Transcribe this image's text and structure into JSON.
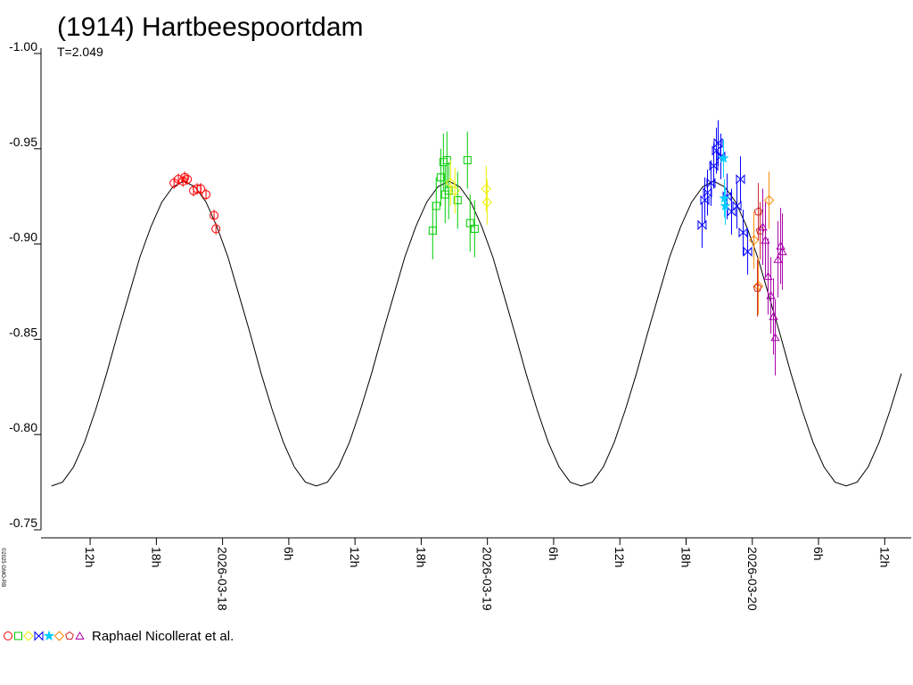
{
  "chart_data": {
    "type": "scatter",
    "title": "(1914) Hartbeespoortdam",
    "subtitle": "T=2.049",
    "copyright": "©2025 GMO-RB",
    "legend_label": "Raphael Nicollerat et al.",
    "xlim": [
      7.55,
      86.4
    ],
    "xticks": [
      {
        "value": 12,
        "label": "12h"
      },
      {
        "value": 18,
        "label": "18h"
      },
      {
        "value": 24,
        "label": "2026-03-18"
      },
      {
        "value": 30,
        "label": "6h"
      },
      {
        "value": 36,
        "label": "12h"
      },
      {
        "value": 42,
        "label": "18h"
      },
      {
        "value": 48,
        "label": "2026-03-19"
      },
      {
        "value": 54,
        "label": "6h"
      },
      {
        "value": 60,
        "label": "12h"
      },
      {
        "value": 66,
        "label": "18h"
      },
      {
        "value": 72,
        "label": "2026-03-20"
      },
      {
        "value": 78,
        "label": "6h"
      },
      {
        "value": 84,
        "label": "12h"
      }
    ],
    "ylim": [
      -1.0,
      -0.75
    ],
    "yreversed": true,
    "yticks": [
      {
        "value": -1.0,
        "label": "-1.00"
      },
      -0.95,
      {
        "value": -0.9,
        "label": "-0.90"
      },
      -0.85,
      {
        "value": -0.8,
        "label": "-0.80"
      },
      -0.75
    ],
    "curve": {
      "color": "#000000",
      "x": [
        8.5,
        9.5,
        10.5,
        11.5,
        12.5,
        13.5,
        14.5,
        15.5,
        16.5,
        17.5,
        18.5,
        19.5,
        20.5,
        21.5,
        22.5,
        23.5,
        24.5,
        25.5,
        26.5,
        27.5,
        28.5,
        29.5,
        30.5,
        31.5,
        32.5,
        33.5,
        34.5,
        35.5,
        36.5,
        37.5,
        38.5,
        39.5,
        40.5,
        41.5,
        42.5,
        43.5,
        44.5,
        45.5,
        46.5,
        47.5,
        48.5,
        49.5,
        50.5,
        51.5,
        52.5,
        53.5,
        54.5,
        55.5,
        56.5,
        57.5,
        58.5,
        59.5,
        60.5,
        61.5,
        62.5,
        63.5,
        64.5,
        65.5,
        66.5,
        67.5,
        68.5,
        69.5,
        70.5,
        71.5,
        72.5,
        73.5,
        74.5,
        75.5,
        76.5,
        77.5,
        78.5,
        79.5,
        80.5,
        81.5,
        82.5,
        83.5,
        84.5,
        85.5
      ],
      "values": [
        -0.773,
        -0.775,
        -0.783,
        -0.796,
        -0.813,
        -0.832,
        -0.853,
        -0.873,
        -0.893,
        -0.909,
        -0.922,
        -0.93,
        -0.933,
        -0.93,
        -0.922,
        -0.909,
        -0.893,
        -0.873,
        -0.853,
        -0.832,
        -0.813,
        -0.796,
        -0.783,
        -0.775,
        -0.773,
        -0.775,
        -0.783,
        -0.796,
        -0.813,
        -0.832,
        -0.853,
        -0.873,
        -0.893,
        -0.909,
        -0.922,
        -0.93,
        -0.933,
        -0.93,
        -0.922,
        -0.909,
        -0.893,
        -0.873,
        -0.853,
        -0.832,
        -0.813,
        -0.796,
        -0.783,
        -0.775,
        -0.773,
        -0.775,
        -0.783,
        -0.796,
        -0.813,
        -0.832,
        -0.853,
        -0.873,
        -0.893,
        -0.909,
        -0.922,
        -0.93,
        -0.933,
        -0.93,
        -0.922,
        -0.909,
        -0.893,
        -0.873,
        -0.853,
        -0.832,
        -0.813,
        -0.796,
        -0.783,
        -0.775,
        -0.773,
        -0.775,
        -0.783,
        -0.796,
        -0.813,
        -0.832
      ]
    },
    "series": [
      {
        "color": "#ff0000",
        "marker": "circle",
        "x": [
          19.6,
          20.0,
          20.41,
          20.57,
          20.81,
          21.37,
          21.7,
          22.02,
          22.5,
          23.23,
          23.4
        ],
        "values": [
          -0.932,
          -0.934,
          -0.933,
          -0.935,
          -0.934,
          -0.928,
          -0.929,
          -0.929,
          -0.926,
          -0.915,
          -0.908
        ],
        "errors": [
          0.003,
          0.003,
          0.003,
          0.003,
          0.003,
          0.003,
          0.003,
          0.003,
          0.003,
          0.003,
          0.003
        ]
      },
      {
        "color": "#00cc00",
        "marker": "square",
        "x": [
          43.04,
          43.36,
          43.77,
          44.01,
          44.17,
          44.33,
          44.49,
          45.3,
          46.19,
          46.43,
          46.84
        ],
        "values": [
          -0.907,
          -0.92,
          -0.935,
          -0.943,
          -0.926,
          -0.944,
          -0.928,
          -0.923,
          -0.944,
          -0.911,
          -0.908
        ],
        "errors": [
          0.015,
          0.015,
          0.015,
          0.015,
          0.015,
          0.015,
          0.015,
          0.015,
          0.015,
          0.015,
          0.015
        ]
      },
      {
        "color": "#eeee00",
        "marker": "diamond",
        "x": [
          44.66,
          45.06,
          47.89,
          47.97
        ],
        "values": [
          -0.932,
          -0.928,
          -0.929,
          -0.922
        ],
        "errors": [
          0.012,
          0.012,
          0.012,
          0.012
        ]
      },
      {
        "color": "#0000ff",
        "marker": "bowtie",
        "x": [
          67.45,
          67.7,
          67.94,
          68.26,
          68.51,
          68.75,
          68.91,
          69.15,
          69.72,
          70.12,
          70.61,
          70.93,
          71.17,
          71.58
        ],
        "values": [
          -0.91,
          -0.923,
          -0.927,
          -0.932,
          -0.941,
          -0.949,
          -0.953,
          -0.946,
          -0.925,
          -0.917,
          -0.92,
          -0.934,
          -0.906,
          -0.896
        ],
        "errors": [
          0.012,
          0.012,
          0.012,
          0.012,
          0.012,
          0.012,
          0.012,
          0.012,
          0.012,
          0.012,
          0.012,
          0.012,
          0.012,
          0.012
        ]
      },
      {
        "color": "#00ccff",
        "marker": "star",
        "x": [
          69.39,
          69.47,
          69.55
        ],
        "values": [
          -0.945,
          -0.924,
          -0.92
        ],
        "errors": [
          0.01,
          0.01,
          0.01
        ]
      },
      {
        "color": "#ff8800",
        "marker": "diamond",
        "x": [
          72.15,
          73.52,
          72.55
        ],
        "values": [
          -0.902,
          -0.923,
          -0.878
        ],
        "errors": [
          0.015,
          0.015,
          0.015
        ]
      },
      {
        "color": "#cc2222",
        "marker": "pentagon",
        "x": [
          72.55,
          72.72,
          72.47
        ],
        "values": [
          -0.917,
          -0.907,
          -0.877
        ],
        "errors": [
          0.015,
          0.015,
          0.015
        ]
      },
      {
        "color": "#aa00aa",
        "marker": "triangle",
        "x": [
          72.95,
          73.19,
          73.43,
          73.68,
          73.92,
          74.08,
          74.33,
          74.57,
          74.73
        ],
        "values": [
          -0.909,
          -0.902,
          -0.883,
          -0.873,
          -0.862,
          -0.851,
          -0.892,
          -0.899,
          -0.896
        ],
        "errors": [
          0.02,
          0.02,
          0.02,
          0.02,
          0.02,
          0.02,
          0.02,
          0.02,
          0.02
        ]
      }
    ]
  }
}
